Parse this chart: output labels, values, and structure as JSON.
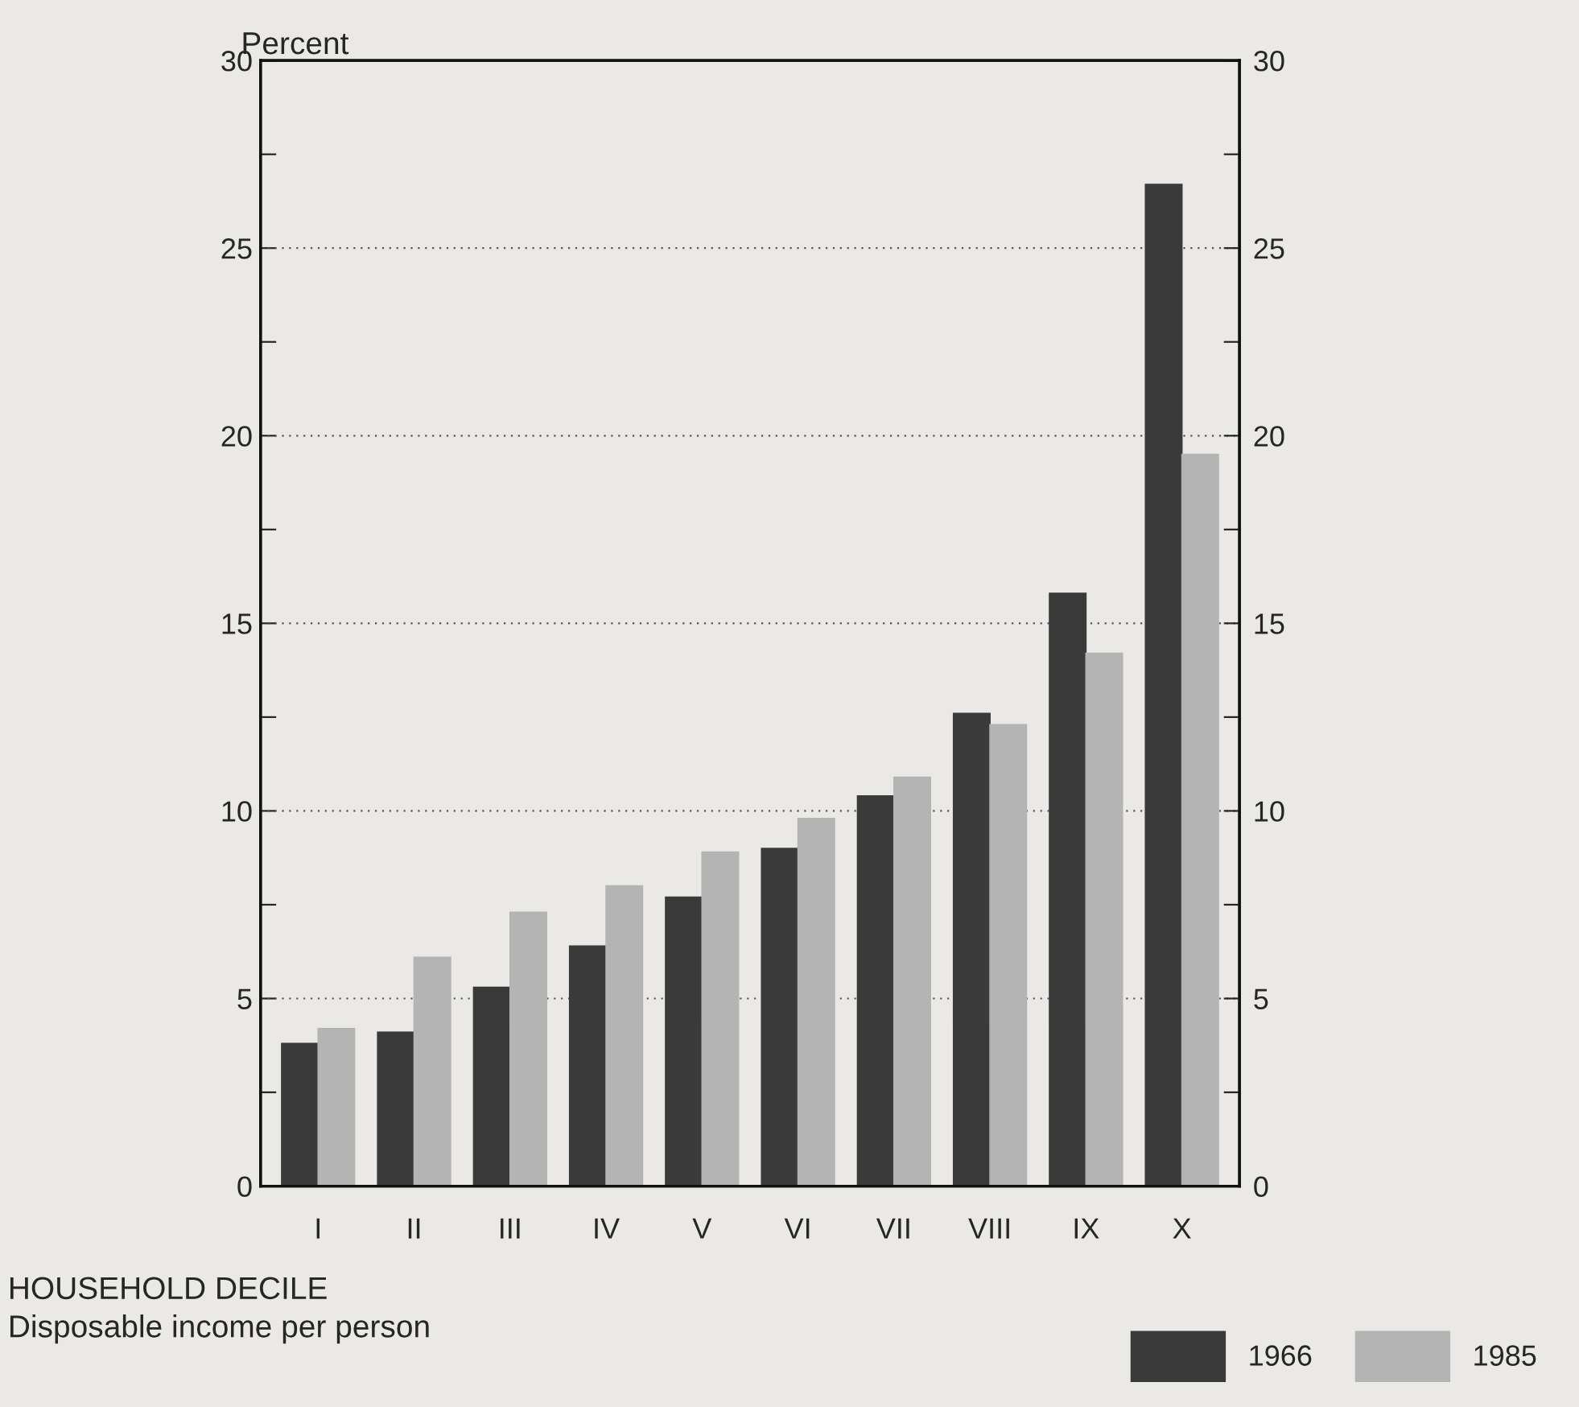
{
  "chart_data": {
    "type": "bar",
    "ylabel": "Percent",
    "xlabel": "HOUSEHOLD DECILE\nDisposable income per person",
    "categories": [
      "I",
      "II",
      "III",
      "IV",
      "V",
      "VI",
      "VII",
      "VIII",
      "IX",
      "X"
    ],
    "series": [
      {
        "name": "1966",
        "color": "#3a3a3a",
        "values": [
          3.8,
          4.1,
          5.3,
          6.4,
          7.7,
          9.0,
          10.4,
          12.6,
          15.8,
          26.7
        ]
      },
      {
        "name": "1985",
        "color": "#b4b4b4",
        "values": [
          4.2,
          6.1,
          7.3,
          8.0,
          8.9,
          9.8,
          10.9,
          12.3,
          14.2,
          19.5
        ]
      }
    ],
    "ylim": [
      0,
      30
    ],
    "yticks": [
      0,
      {
        "value": 2.5,
        "label": null
      },
      5,
      {
        "value": 7.5,
        "label": null
      },
      10,
      {
        "value": 12.5,
        "label": null
      },
      15,
      {
        "value": 17.5,
        "label": null
      },
      20,
      {
        "value": 22.5,
        "label": null
      },
      25,
      {
        "value": 27.5,
        "label": null
      },
      30
    ],
    "y2lim": [
      0,
      30
    ],
    "y2ticks": [
      0,
      {
        "value": 2.5,
        "label": null
      },
      5,
      {
        "value": 7.5,
        "label": null
      },
      10,
      {
        "value": 12.5,
        "label": null
      },
      15,
      {
        "value": 17.5,
        "label": null
      },
      20,
      {
        "value": 22.5,
        "label": null
      },
      25,
      {
        "value": 27.5,
        "label": null
      },
      30
    ],
    "grid": "y",
    "legend": "bottom right"
  }
}
